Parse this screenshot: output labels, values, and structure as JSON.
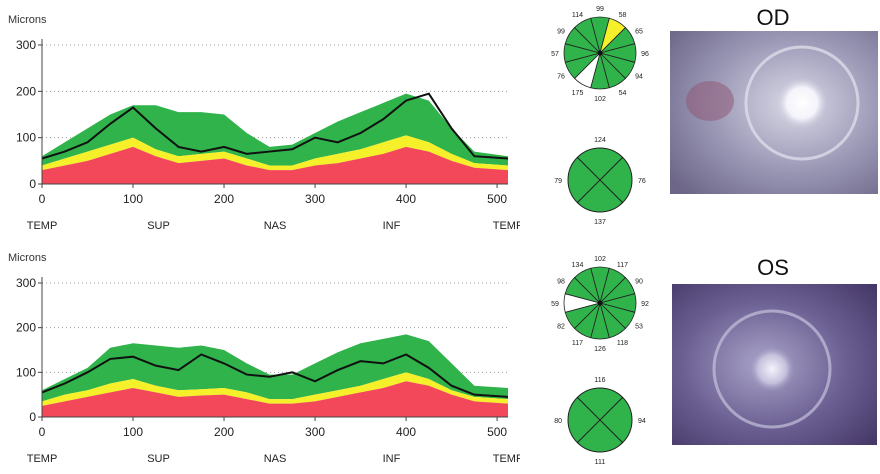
{
  "chart_data": [
    {
      "type": "area",
      "eye": "OD",
      "ylabel": "Microns",
      "xlim": [
        0,
        512
      ],
      "ylim": [
        0,
        300
      ],
      "yticks": [
        "0",
        "100",
        "200",
        "300"
      ],
      "xticks": [
        "0",
        "100",
        "200",
        "300",
        "400",
        "500"
      ],
      "region_labels": [
        "TEMP",
        "SUP",
        "NAS",
        "INF",
        "TEMP"
      ],
      "x": [
        0,
        25,
        50,
        75,
        100,
        125,
        150,
        175,
        200,
        225,
        250,
        275,
        300,
        325,
        350,
        375,
        400,
        425,
        450,
        475,
        512
      ],
      "bands": {
        "red_upper": [
          30,
          40,
          50,
          65,
          80,
          60,
          45,
          50,
          55,
          40,
          30,
          30,
          40,
          45,
          55,
          65,
          80,
          70,
          50,
          35,
          30
        ],
        "yellow_upper": [
          40,
          55,
          70,
          85,
          100,
          75,
          60,
          65,
          70,
          55,
          40,
          40,
          55,
          65,
          75,
          90,
          105,
          90,
          65,
          45,
          40
        ],
        "green_upper": [
          60,
          90,
          120,
          150,
          170,
          170,
          155,
          155,
          150,
          110,
          80,
          85,
          110,
          135,
          155,
          175,
          195,
          180,
          120,
          70,
          60
        ]
      },
      "series": [
        {
          "values": [
            55,
            70,
            90,
            130,
            165,
            120,
            80,
            70,
            80,
            65,
            70,
            75,
            100,
            90,
            110,
            140,
            180,
            195,
            120,
            60,
            55
          ]
        }
      ],
      "colors": {
        "red": "#f2485a",
        "yellow": "#f5f02a",
        "green": "#2fb34a",
        "line": "#111111"
      }
    },
    {
      "type": "area",
      "eye": "OS",
      "ylabel": "Microns",
      "xlim": [
        0,
        512
      ],
      "ylim": [
        0,
        300
      ],
      "yticks": [
        "0",
        "100",
        "200",
        "300"
      ],
      "xticks": [
        "0",
        "100",
        "200",
        "300",
        "400",
        "500"
      ],
      "region_labels": [
        "TEMP",
        "SUP",
        "NAS",
        "INF",
        "TEMP"
      ],
      "x": [
        0,
        25,
        50,
        75,
        100,
        125,
        150,
        175,
        200,
        225,
        250,
        275,
        300,
        325,
        350,
        375,
        400,
        425,
        450,
        475,
        512
      ],
      "bands": {
        "red_upper": [
          25,
          35,
          45,
          55,
          65,
          55,
          45,
          48,
          50,
          40,
          30,
          30,
          35,
          45,
          55,
          65,
          80,
          70,
          50,
          35,
          30
        ],
        "yellow_upper": [
          35,
          50,
          60,
          75,
          85,
          70,
          60,
          62,
          65,
          55,
          40,
          40,
          50,
          60,
          70,
          85,
          100,
          85,
          60,
          45,
          40
        ],
        "green_upper": [
          60,
          85,
          110,
          155,
          165,
          160,
          155,
          160,
          150,
          120,
          95,
          95,
          120,
          145,
          165,
          175,
          185,
          170,
          120,
          70,
          65
        ]
      },
      "series": [
        {
          "values": [
            55,
            75,
            100,
            130,
            135,
            115,
            105,
            140,
            120,
            95,
            90,
            100,
            80,
            105,
            125,
            120,
            140,
            110,
            70,
            50,
            45
          ]
        }
      ],
      "colors": {
        "red": "#f2485a",
        "yellow": "#f5f02a",
        "green": "#2fb34a",
        "line": "#111111"
      }
    }
  ],
  "clock_charts": {
    "od": {
      "labels": [
        "99",
        "58",
        "65",
        "96",
        "94",
        "54",
        "102",
        "175",
        "76",
        "57",
        "99",
        "114"
      ],
      "sector_colors": [
        "green",
        "yellow",
        "green",
        "green",
        "green",
        "green",
        "green",
        "white",
        "green",
        "green",
        "green",
        "green"
      ]
    },
    "os": {
      "labels": [
        "102",
        "117",
        "90",
        "92",
        "53",
        "118",
        "126",
        "117",
        "82",
        "59",
        "98",
        "134"
      ],
      "sector_colors": [
        "green",
        "green",
        "green",
        "green",
        "green",
        "green",
        "green",
        "green",
        "green",
        "white",
        "green",
        "green"
      ]
    }
  },
  "quadrant_charts": {
    "od": {
      "top": "124",
      "right": "76",
      "bottom": "137",
      "left": "79"
    },
    "os": {
      "top": "116",
      "right": "94",
      "bottom": "111",
      "left": "80"
    }
  },
  "eye_labels": {
    "od": "OD",
    "os": "OS"
  }
}
